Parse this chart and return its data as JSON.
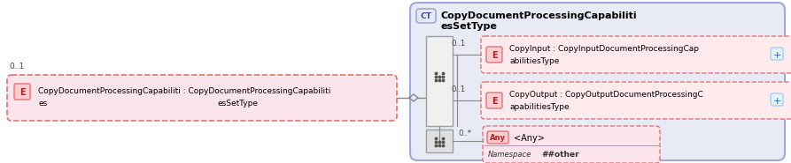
{
  "bg_color": "#ffffff",
  "left_box_bg": "#fce4ec",
  "left_box_border": "#e57373",
  "elem_badge_bg": "#ffcdd2",
  "elem_badge_border": "#e57373",
  "elem_badge_text": "#b71c1c",
  "ct_outer_bg": "#e8eaf6",
  "ct_outer_border": "#9fa8da",
  "ct_badge_bg": "#e8eaf6",
  "ct_badge_border": "#9fa8da",
  "ct_badge_text": "#3949ab",
  "seq_rect_bg": "#e0e0e0",
  "seq_rect_border": "#9e9e9e",
  "elem_box_bg": "#ffebee",
  "elem_box_border": "#e57373",
  "plus_bg": "#e3f2fd",
  "plus_border": "#90caf9",
  "plus_text": "#1565c0",
  "any_outer_bg": "#fce4ec",
  "any_outer_border": "#e57373",
  "any_badge_bg": "#ffcdd2",
  "any_badge_border": "#e57373",
  "any_badge_text": "#b71c1c",
  "anyconn_bg": "#e0e0e0",
  "anyconn_border": "#9e9e9e",
  "line_color": "#888888",
  "label_color": "#444444",
  "text_color": "#000000",
  "left_label": "0..1",
  "left_elem_line1": "CopyDocumentProcessingCapabiliti : CopyDocumentProcessingCapabiliti",
  "left_elem_line2_left": "es",
  "left_elem_line2_right": "esSetType",
  "ct_title_line1": "CopyDocumentProcessingCapabiliti",
  "ct_title_line2": "esSetType",
  "seq_label1": "0..1",
  "seq_label2": "0..1",
  "seq_label3": "0..*",
  "elem1_line1": "CopyInput : CopyInputDocumentProcessingCap",
  "elem1_line2": "abilitiesType",
  "elem2_line1": "CopyOutput : CopyOutputDocumentProcessingC",
  "elem2_line2": "apabilitiesType",
  "any_text": "<Any>",
  "ns_label": "Namespace",
  "ns_value": "##other"
}
